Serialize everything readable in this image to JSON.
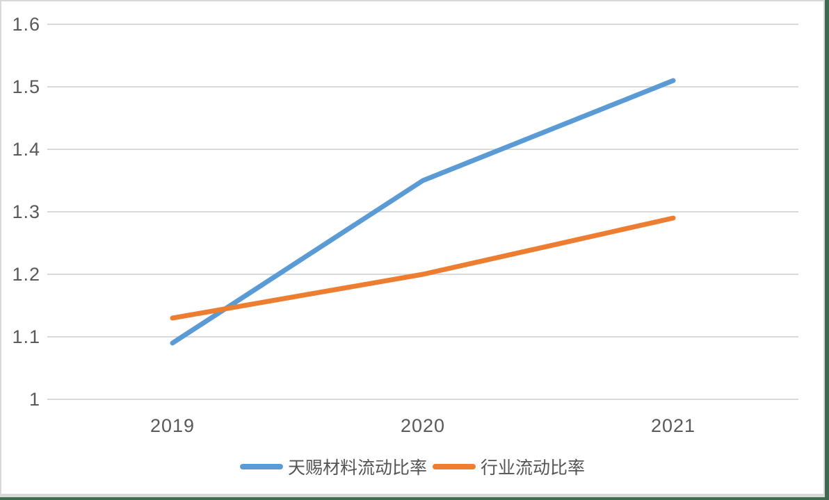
{
  "chart_data": {
    "type": "line",
    "title": "",
    "xlabel": "",
    "ylabel": "",
    "categories": [
      "2019",
      "2020",
      "2021"
    ],
    "series": [
      {
        "id": "tianci-current-ratio",
        "name": "天赐材料流动比率",
        "values": [
          1.09,
          1.35,
          1.51
        ],
        "color": "#5b9bd5"
      },
      {
        "id": "industry-current-ratio",
        "name": "行业流动比率",
        "values": [
          1.13,
          1.2,
          1.29
        ],
        "color": "#ed7d31"
      }
    ],
    "ylim": [
      1,
      1.6
    ],
    "y_ticks": [
      1,
      1.1,
      1.2,
      1.3,
      1.4,
      1.5,
      1.6
    ],
    "y_tick_labels": [
      "1",
      "1.1",
      "1.2",
      "1.3",
      "1.4",
      "1.5",
      "1.6"
    ],
    "grid": true,
    "legend_position": "bottom"
  },
  "styles": {
    "grid_color": "#d9d9d9",
    "tick_text_color": "#595959",
    "legend_text_color": "#545454",
    "frame_green": "#3f6a50",
    "frame_gray": "#d8d8d8",
    "background": "#ffffff"
  }
}
